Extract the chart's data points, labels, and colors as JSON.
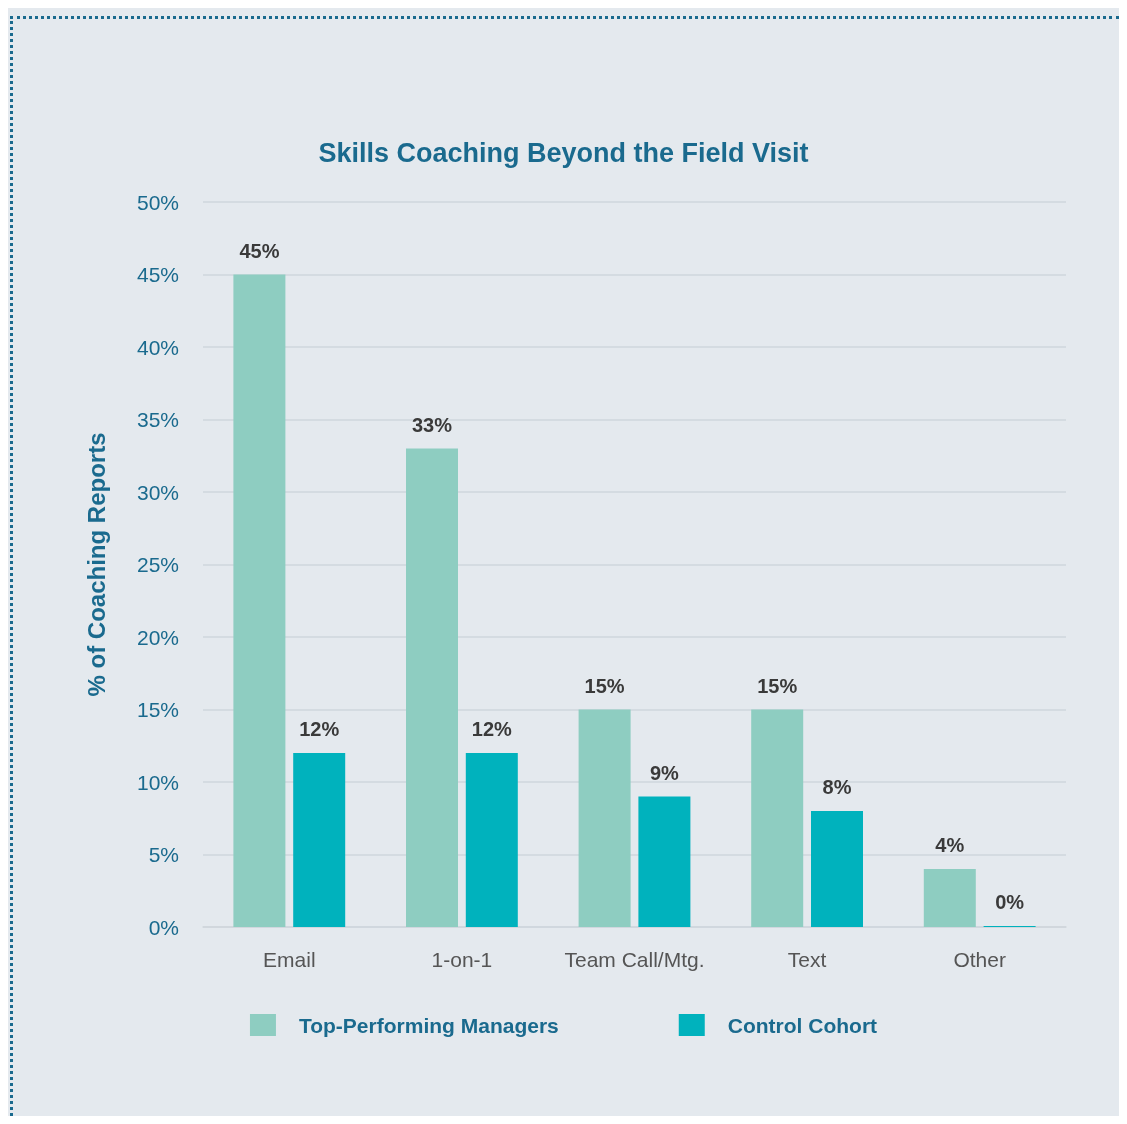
{
  "chart_data": {
    "type": "bar",
    "title": "Skills Coaching Beyond the Field Visit",
    "ylabel": "% of Coaching Reports",
    "categories": [
      "Email",
      "1-on-1",
      "Team Call/Mtg.",
      "Text",
      "Other"
    ],
    "series": [
      {
        "name": "Top-Performing Managers",
        "color": "#8ecdc1",
        "values": [
          45,
          33,
          15,
          15,
          4
        ],
        "value_labels": [
          "45%",
          "33%",
          "15%",
          "15%",
          "4%"
        ]
      },
      {
        "name": "Control Cohort",
        "color": "#00b2bd",
        "values": [
          12,
          12,
          9,
          8,
          0
        ],
        "value_labels": [
          "12%",
          "12%",
          "9%",
          "8%",
          "0%"
        ]
      }
    ],
    "ylim": [
      0,
      50
    ],
    "yticks": [
      {
        "value": 0,
        "label": "0%"
      },
      {
        "value": 5,
        "label": "5%"
      },
      {
        "value": 10,
        "label": "10%"
      },
      {
        "value": 15,
        "label": "15%"
      },
      {
        "value": 20,
        "label": "20%"
      },
      {
        "value": 25,
        "label": "25%"
      },
      {
        "value": 30,
        "label": "30%"
      },
      {
        "value": 35,
        "label": "35%"
      },
      {
        "value": 40,
        "label": "40%"
      },
      {
        "value": 45,
        "label": "45%"
      },
      {
        "value": 50,
        "label": "50%"
      }
    ],
    "grid": "y",
    "legend": "bottom"
  }
}
